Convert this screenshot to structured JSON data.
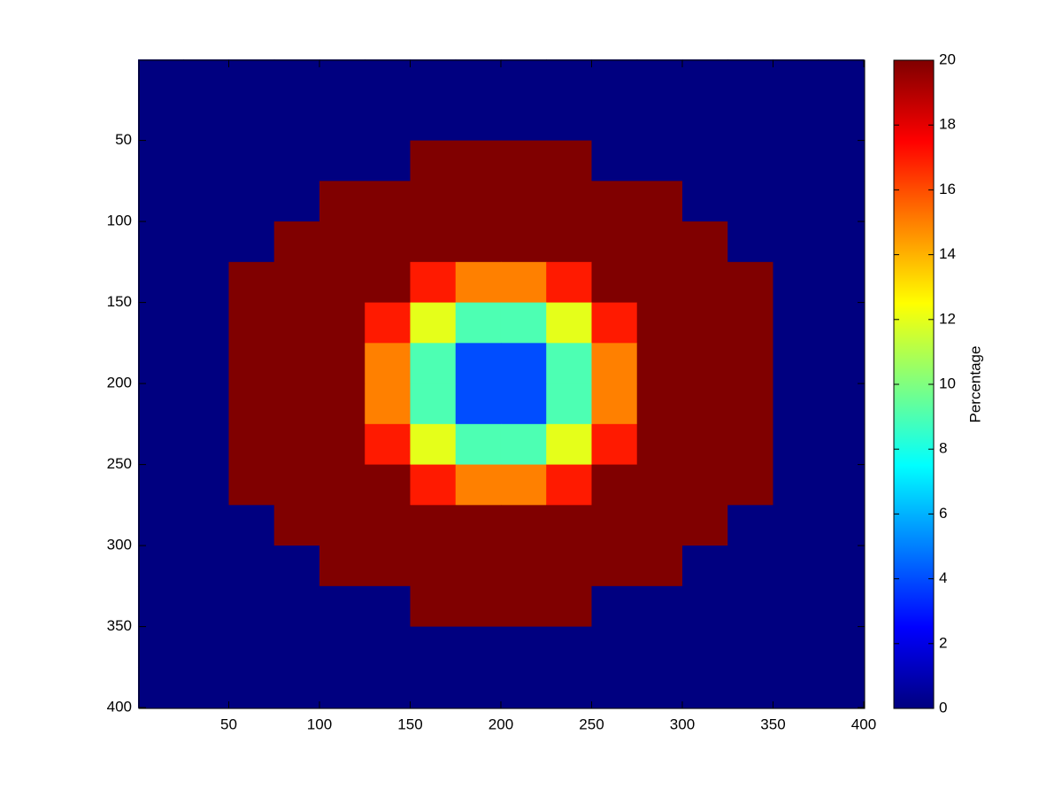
{
  "chart_data": {
    "type": "heatmap",
    "colormap": "jet",
    "colorbar_label": "Percentage",
    "xlim": [
      0.5,
      400.5
    ],
    "ylim": [
      0.5,
      400.5
    ],
    "y_reversed": true,
    "xticks": [
      50,
      100,
      150,
      200,
      250,
      300,
      350,
      400
    ],
    "yticks": [
      50,
      100,
      150,
      200,
      250,
      300,
      350,
      400
    ],
    "clim": [
      0,
      20
    ],
    "cticks": [
      0,
      2,
      4,
      6,
      8,
      10,
      12,
      14,
      16,
      18,
      20
    ],
    "x": [
      12.5,
      37.5,
      62.5,
      87.5,
      112.5,
      137.5,
      162.5,
      187.5,
      212.5,
      237.5,
      262.5,
      287.5,
      312.5,
      337.5,
      362.5,
      387.5
    ],
    "y": [
      12.5,
      37.5,
      62.5,
      87.5,
      112.5,
      137.5,
      162.5,
      187.5,
      212.5,
      237.5,
      262.5,
      287.5,
      312.5,
      337.5,
      362.5,
      387.5
    ],
    "z": [
      [
        0,
        0,
        0,
        0,
        0,
        0,
        0,
        0,
        0,
        0,
        0,
        0,
        0,
        0,
        0,
        0
      ],
      [
        0,
        0,
        0,
        0,
        0,
        0,
        0,
        0,
        0,
        0,
        0,
        0,
        0,
        0,
        0,
        0
      ],
      [
        0,
        0,
        0,
        0,
        0,
        0,
        20,
        20,
        20,
        20,
        0,
        0,
        0,
        0,
        0,
        0
      ],
      [
        0,
        0,
        0,
        0,
        20,
        20,
        20,
        20,
        20,
        20,
        20,
        20,
        0,
        0,
        0,
        0
      ],
      [
        0,
        0,
        0,
        20,
        20,
        20,
        20,
        20,
        20,
        20,
        20,
        20,
        20,
        0,
        0,
        0
      ],
      [
        0,
        0,
        20,
        20,
        20,
        20,
        17,
        15,
        15,
        17,
        20,
        20,
        20,
        20,
        0,
        0
      ],
      [
        0,
        0,
        20,
        20,
        20,
        17,
        12,
        9,
        9,
        12,
        17,
        20,
        20,
        20,
        0,
        0
      ],
      [
        0,
        0,
        20,
        20,
        20,
        15,
        9,
        4,
        4,
        9,
        15,
        20,
        20,
        20,
        0,
        0
      ],
      [
        0,
        0,
        20,
        20,
        20,
        15,
        9,
        4,
        4,
        9,
        15,
        20,
        20,
        20,
        0,
        0
      ],
      [
        0,
        0,
        20,
        20,
        20,
        17,
        12,
        9,
        9,
        12,
        17,
        20,
        20,
        20,
        0,
        0
      ],
      [
        0,
        0,
        20,
        20,
        20,
        20,
        17,
        15,
        15,
        17,
        20,
        20,
        20,
        20,
        0,
        0
      ],
      [
        0,
        0,
        0,
        20,
        20,
        20,
        20,
        20,
        20,
        20,
        20,
        20,
        20,
        0,
        0,
        0
      ],
      [
        0,
        0,
        0,
        0,
        20,
        20,
        20,
        20,
        20,
        20,
        20,
        20,
        0,
        0,
        0,
        0
      ],
      [
        0,
        0,
        0,
        0,
        0,
        0,
        20,
        20,
        20,
        20,
        0,
        0,
        0,
        0,
        0,
        0
      ],
      [
        0,
        0,
        0,
        0,
        0,
        0,
        0,
        0,
        0,
        0,
        0,
        0,
        0,
        0,
        0,
        0
      ],
      [
        0,
        0,
        0,
        0,
        0,
        0,
        0,
        0,
        0,
        0,
        0,
        0,
        0,
        0,
        0,
        0
      ]
    ]
  }
}
